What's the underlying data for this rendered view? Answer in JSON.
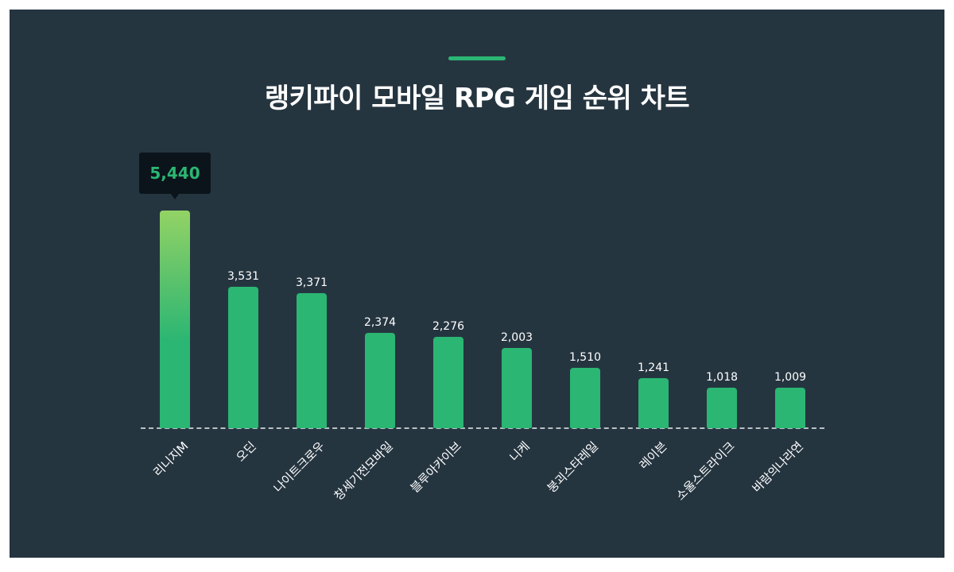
{
  "title": "랭키파이 모바일 RPG 게임 순위 차트",
  "colors": {
    "background": "#253540",
    "bar": "#2bb673",
    "bar_top_gradient": "#93d365",
    "tooltip_bg": "#0b141b",
    "tooltip_text": "#2bb673",
    "accent": "#2bb673"
  },
  "tooltip": {
    "label": "5,440"
  },
  "bars": [
    {
      "name": "리니지M",
      "value": 5440,
      "label": "5,440"
    },
    {
      "name": "오딘",
      "value": 3531,
      "label": "3,531"
    },
    {
      "name": "나이트크로우",
      "value": 3371,
      "label": "3,371"
    },
    {
      "name": "창세기전모바일",
      "value": 2374,
      "label": "2,374"
    },
    {
      "name": "블루아카이브",
      "value": 2276,
      "label": "2,276"
    },
    {
      "name": "니케",
      "value": 2003,
      "label": "2,003"
    },
    {
      "name": "붕괴스타레일",
      "value": 1510,
      "label": "1,510"
    },
    {
      "name": "레이븐",
      "value": 1241,
      "label": "1,241"
    },
    {
      "name": "소울스트라이크",
      "value": 1018,
      "label": "1,018"
    },
    {
      "name": "바람의나라연",
      "value": 1009,
      "label": "1,009"
    }
  ],
  "chart_data": {
    "type": "bar",
    "title": "랭키파이 모바일 RPG 게임 순위 차트",
    "categories": [
      "리니지M",
      "오딘",
      "나이트크로우",
      "창세기전모바일",
      "블루아카이브",
      "니케",
      "붕괴스타레일",
      "레이븐",
      "소울스트라이크",
      "바람의나라연"
    ],
    "values": [
      5440,
      3531,
      3371,
      2374,
      2276,
      2003,
      1510,
      1241,
      1018,
      1009
    ],
    "xlabel": "",
    "ylabel": "",
    "ylim": [
      0,
      5440
    ],
    "grid": false,
    "legend": "none",
    "highlight": {
      "category": "리니지M",
      "value": 5440,
      "label": "5,440"
    }
  }
}
